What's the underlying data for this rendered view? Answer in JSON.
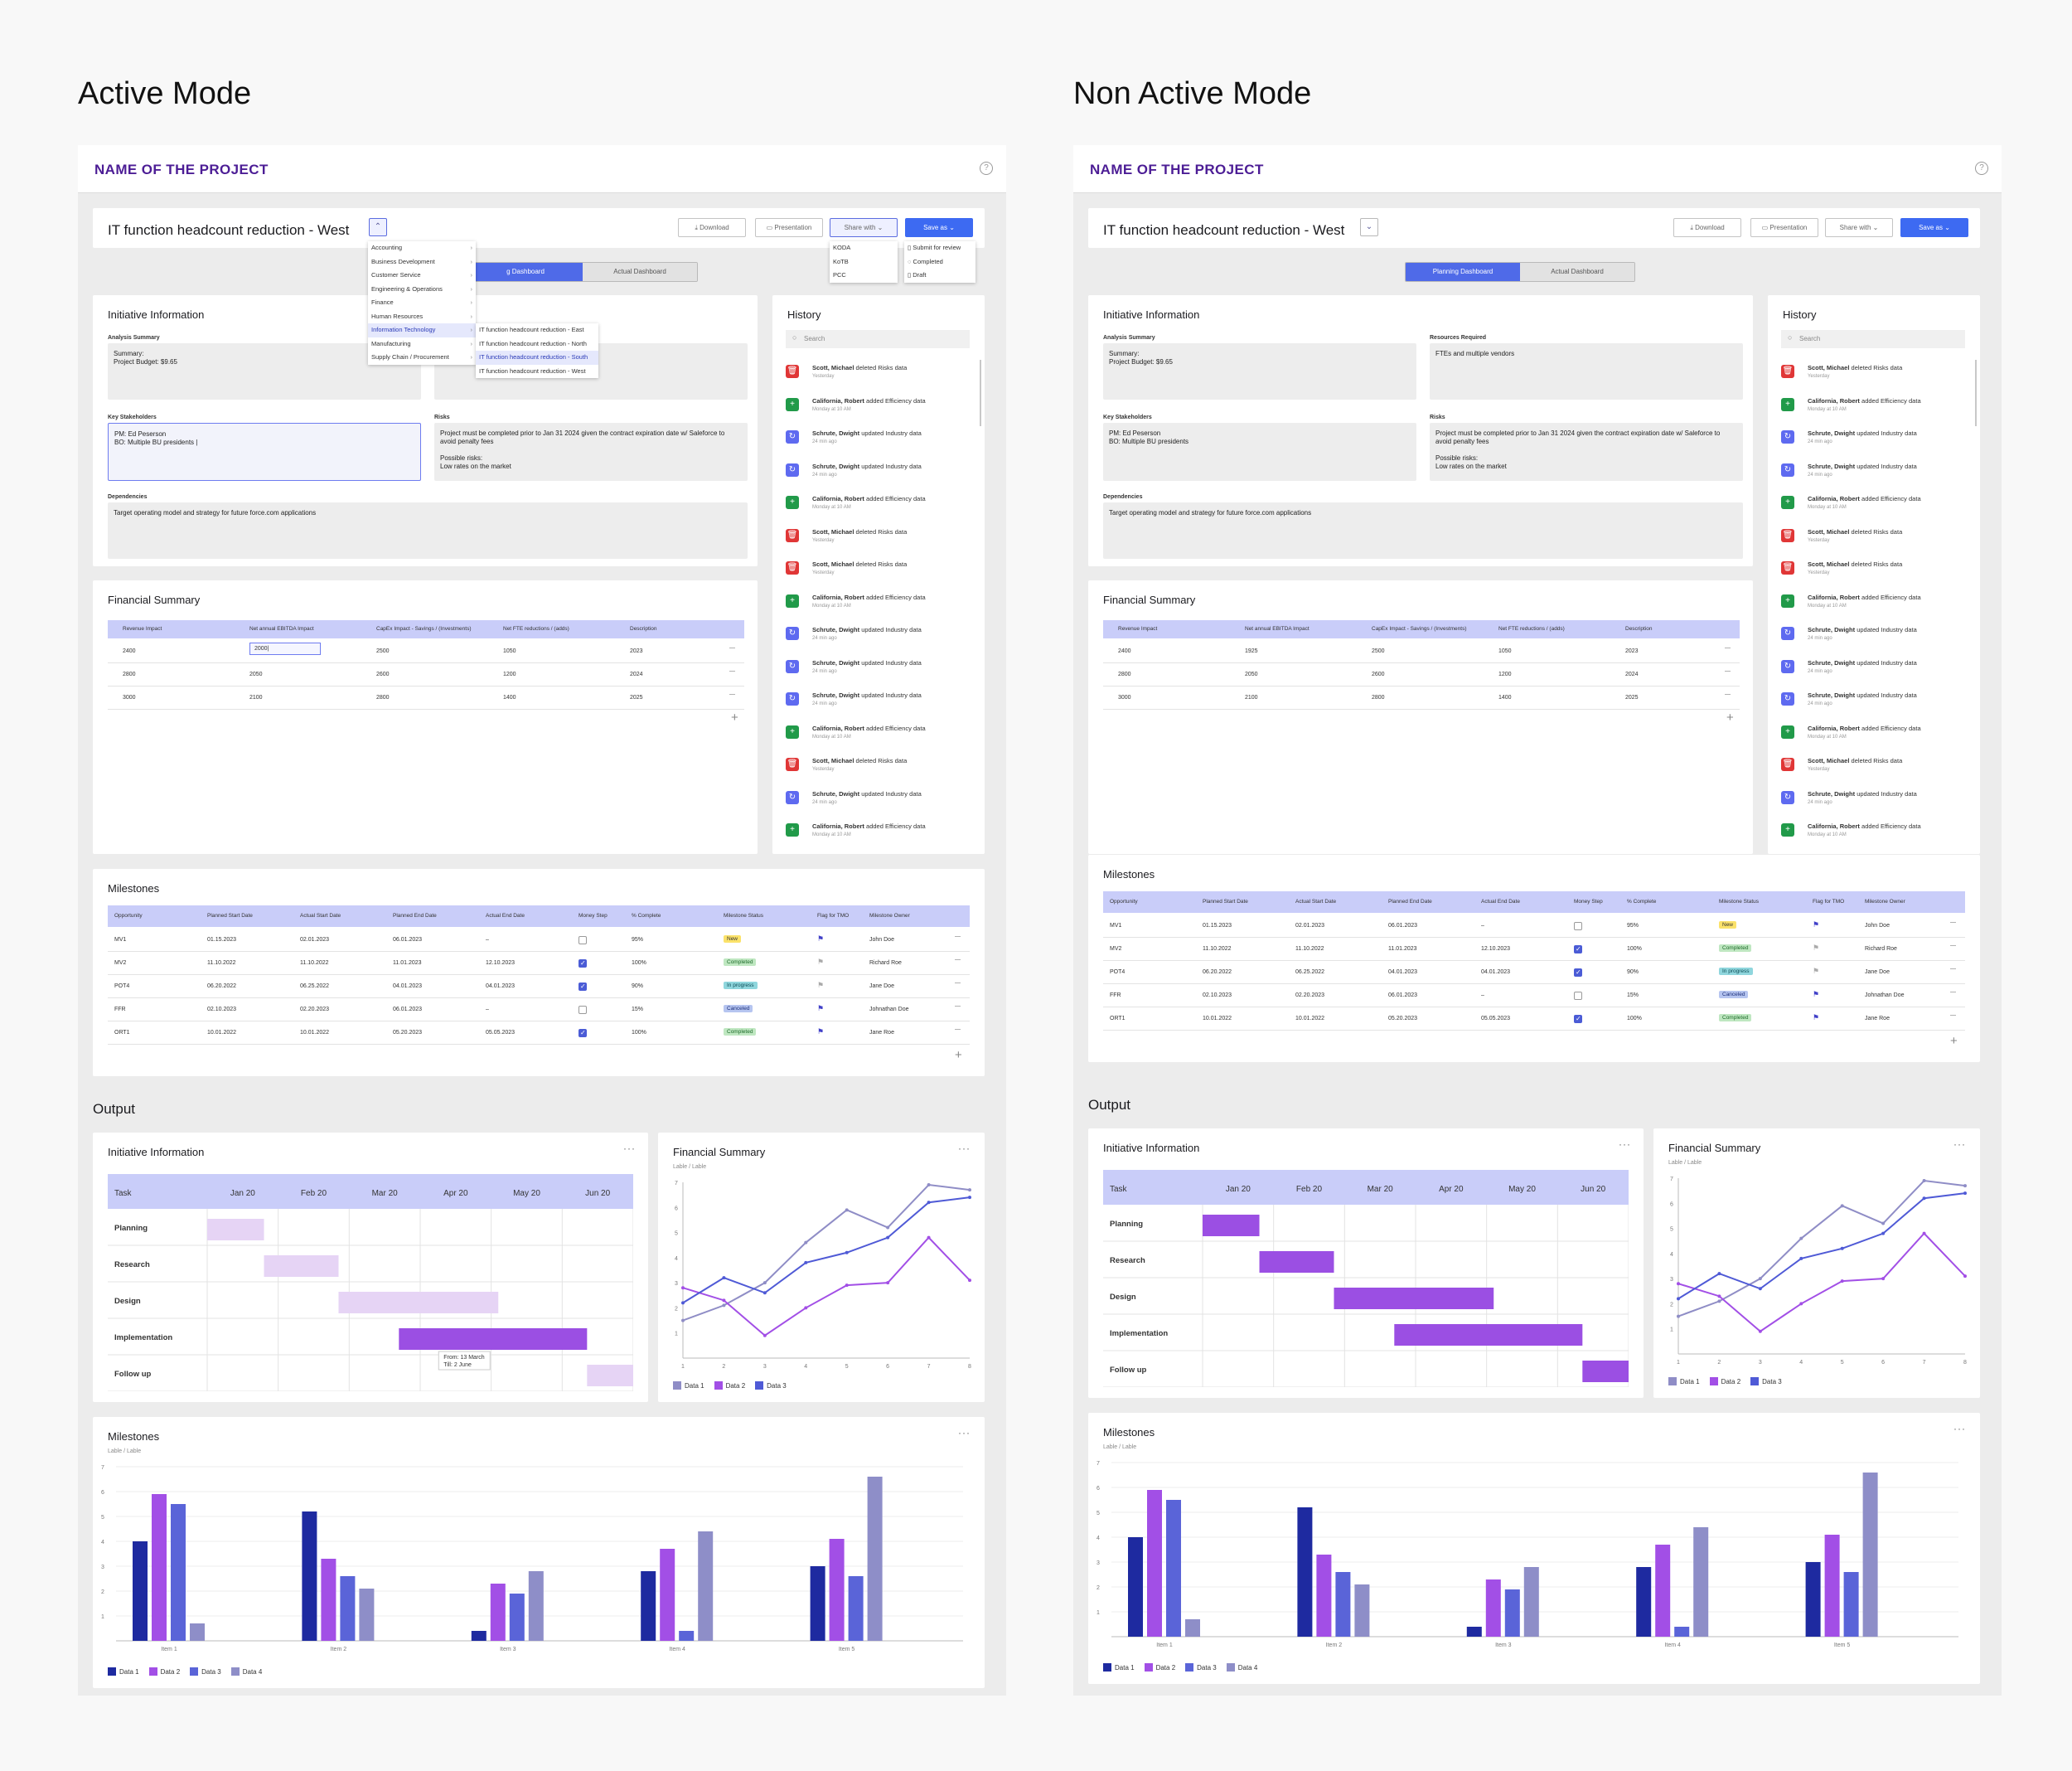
{
  "modes": {
    "active": "Active Mode",
    "non_active": "Non Active Mode"
  },
  "project_title": "NAME OF THE PROJECT",
  "initiative_title": "IT function headcount reduction - West",
  "toolbar": {
    "download": "Download",
    "presentation": "Presentation",
    "share": "Share with",
    "save": "Save as"
  },
  "tabs": {
    "planning": "Planning Dashboard",
    "actual": "Actual Dashboard",
    "planning_cut": "g Dashboard"
  },
  "category_menu": [
    "Accounting",
    "Business Development",
    "Customer Service",
    "Engineering & Operations",
    "Finance",
    "Human Resources",
    "Information Technology",
    "Manufacturing",
    "Supply Chain / Procurement"
  ],
  "sub_menu": [
    "IT function headcount reduction - East",
    "IT function headcount reduction - North",
    "IT function headcount reduction - South",
    "IT function headcount reduction - West"
  ],
  "share_menu": [
    "KODA",
    "KoTB",
    "PCC"
  ],
  "save_menu": [
    "Submit for review",
    "Completed",
    "Draft"
  ],
  "initiative": {
    "title": "Initiative Information",
    "analysis_label": "Analysis Summary",
    "analysis_value": "Summary:\nProject Budget: $9.65",
    "resources_label": "Resources Required",
    "resources_value": "FTEs and multiple vendors",
    "stakeholders_label": "Key Stakeholders",
    "stakeholders_value": "PM: Ed Peserson\nBO: Multiple BU presidents",
    "stakeholders_value_active": "PM: Ed Peserson\nBO: Multiple BU presidents |",
    "risks_label": "Risks",
    "risks_value": "Project must be completed prior to Jan 31 2024 given the contract expiration date w/ Saleforce to avoid penalty fees\n\nPossible risks:\nLow rates on the market",
    "deps_label": "Dependencies",
    "deps_value": "Target operating model and strategy for future force.com applications"
  },
  "history": {
    "title": "History",
    "search": "Search",
    "items": [
      {
        "t": "del",
        "name": "Scott, Michael",
        "action": "deleted Risks data",
        "time": "Yesterday"
      },
      {
        "t": "add",
        "name": "California, Robert",
        "action": "added Efficiency data",
        "time": "Monday at 10 AM"
      },
      {
        "t": "upd",
        "name": "Schrute, Dwight",
        "action": "updated Industry data",
        "time": "24 min ago"
      },
      {
        "t": "upd",
        "name": "Schrute, Dwight",
        "action": "updated Industry data",
        "time": "24 min ago"
      },
      {
        "t": "add",
        "name": "California, Robert",
        "action": "added Efficiency data",
        "time": "Monday at 10 AM"
      },
      {
        "t": "del",
        "name": "Scott, Michael",
        "action": "deleted Risks data",
        "time": "Yesterday"
      },
      {
        "t": "del",
        "name": "Scott, Michael",
        "action": "deleted Risks data",
        "time": "Yesterday"
      },
      {
        "t": "add",
        "name": "California, Robert",
        "action": "added Efficiency data",
        "time": "Monday at 10 AM"
      },
      {
        "t": "upd",
        "name": "Schrute, Dwight",
        "action": "updated Industry data",
        "time": "24 min ago"
      },
      {
        "t": "upd",
        "name": "Schrute, Dwight",
        "action": "updated Industry data",
        "time": "24 min ago"
      },
      {
        "t": "upd",
        "name": "Schrute, Dwight",
        "action": "updated Industry data",
        "time": "24 min ago"
      },
      {
        "t": "add",
        "name": "California, Robert",
        "action": "added Efficiency data",
        "time": "Monday at 10 AM"
      },
      {
        "t": "del",
        "name": "Scott, Michael",
        "action": "deleted Risks data",
        "time": "Yesterday"
      },
      {
        "t": "upd",
        "name": "Schrute, Dwight",
        "action": "updated Industry data",
        "time": "24 min ago"
      },
      {
        "t": "add",
        "name": "California, Robert",
        "action": "added Efficiency data",
        "time": "Monday at 10 AM"
      }
    ]
  },
  "financial": {
    "title": "Financial Summary",
    "headers": [
      "Revenue Impact",
      "Net annual EBITDA Impact",
      "CapEx Impact - Savings / (Investments)",
      "Net FTE reductions / (adds)",
      "Description"
    ],
    "rows_active": [
      [
        "2400",
        "2000|",
        "2500",
        "1050",
        "2023"
      ],
      [
        "2800",
        "2050",
        "2600",
        "1200",
        "2024"
      ],
      [
        "3000",
        "2100",
        "2800",
        "1400",
        "2025"
      ]
    ],
    "rows": [
      [
        "2400",
        "1925",
        "2500",
        "1050",
        "2023"
      ],
      [
        "2800",
        "2050",
        "2600",
        "1200",
        "2024"
      ],
      [
        "3000",
        "2100",
        "2800",
        "1400",
        "2025"
      ]
    ]
  },
  "milestones": {
    "title": "Milestones",
    "headers": [
      "Opportunity",
      "Planned Start Date",
      "Actual Start Date",
      "Planned End Date",
      "Actual End Date",
      "Money Step",
      "% Complete",
      "Milestone Status",
      "Flag for TMO",
      "Milestone Owner"
    ],
    "rows": [
      {
        "c": [
          "MV1",
          "01.15.2023",
          "02.01.2023",
          "06.01.2023",
          "–"
        ],
        "chk": false,
        "pct": "95%",
        "status": "New",
        "cls": "b-new",
        "flag": true,
        "owner": "John Doe"
      },
      {
        "c": [
          "MV2",
          "11.10.2022",
          "11.10.2022",
          "11.01.2023",
          "12.10.2023"
        ],
        "chk": true,
        "pct": "100%",
        "status": "Completed",
        "cls": "b-comp",
        "flag": false,
        "owner": "Richard Roe"
      },
      {
        "c": [
          "POT4",
          "06.20.2022",
          "06.25.2022",
          "04.01.2023",
          "04.01.2023"
        ],
        "chk": true,
        "pct": "90%",
        "status": "In progress",
        "cls": "b-prog",
        "flag": false,
        "owner": "Jane Doe"
      },
      {
        "c": [
          "FFR",
          "02.10.2023",
          "02.20.2023",
          "06.01.2023",
          "–"
        ],
        "chk": false,
        "pct": "15%",
        "status": "Canceled",
        "cls": "b-can",
        "flag": true,
        "owner": "Johnathan Doe"
      },
      {
        "c": [
          "ORT1",
          "10.01.2022",
          "10.01.2022",
          "05.20.2023",
          "05.05.2023"
        ],
        "chk": true,
        "pct": "100%",
        "status": "Completed",
        "cls": "b-comp",
        "flag": true,
        "owner": "Jane Roe"
      }
    ]
  },
  "output": {
    "title": "Output",
    "gantt_title": "Initiative Information",
    "fin_title": "Financial Summary",
    "ms_title": "Milestones",
    "sub": "Lable / Lable",
    "tooltip": [
      "From: 13 March",
      "Till: 2 June"
    ]
  },
  "colors": {
    "d1": "#8f8dc6",
    "d2": "#a24fe6",
    "d3": "#4f5ad6",
    "b1": "#1e2aa0",
    "b2": "#a24fe6",
    "b3": "#5a64d8",
    "b4": "#8e8ec8",
    "gantt_on": "#9b4fe3",
    "gantt_off": "#e6d4f5"
  },
  "chart_data": [
    {
      "type": "table",
      "title": "Initiative Information",
      "columns": [
        "Task",
        "Jan 20",
        "Feb 20",
        "Mar 20",
        "Apr 20",
        "May 20",
        "Jun 20"
      ],
      "tasks": [
        {
          "task": "Planning",
          "start": 0.0,
          "end": 0.8
        },
        {
          "task": "Research",
          "start": 0.8,
          "end": 1.85
        },
        {
          "task": "Design",
          "start": 1.85,
          "end": 4.1
        },
        {
          "task": "Implementation",
          "start": 2.7,
          "end": 5.35
        },
        {
          "task": "Follow up",
          "start": 5.35,
          "end": 6.3
        }
      ]
    },
    {
      "type": "line",
      "title": "Financial Summary",
      "subtitle": "Lable / Lable",
      "x": [
        1,
        2,
        3,
        4,
        5,
        6,
        7,
        8
      ],
      "ylim": [
        0,
        7
      ],
      "series": [
        {
          "name": "Data 1",
          "values": [
            1.5,
            2.1,
            3.0,
            4.6,
            5.9,
            5.2,
            6.9,
            6.7
          ]
        },
        {
          "name": "Data 2",
          "values": [
            2.8,
            2.3,
            0.9,
            2.0,
            2.9,
            3.0,
            4.8,
            3.1
          ]
        },
        {
          "name": "Data 3",
          "values": [
            2.2,
            3.2,
            2.6,
            3.8,
            4.2,
            4.8,
            6.2,
            6.4
          ]
        }
      ]
    },
    {
      "type": "bar",
      "title": "Milestones",
      "subtitle": "Lable / Lable",
      "categories": [
        "Item 1",
        "Item 2",
        "Item 3",
        "Item 4",
        "Item 5"
      ],
      "ylim": [
        0,
        7
      ],
      "series": [
        {
          "name": "Data 1",
          "values": [
            4.0,
            5.2,
            0.4,
            2.8,
            3.0
          ]
        },
        {
          "name": "Data 2",
          "values": [
            5.9,
            3.3,
            2.3,
            3.7,
            4.1
          ]
        },
        {
          "name": "Data 3",
          "values": [
            5.5,
            2.6,
            1.9,
            0.4,
            2.6
          ]
        },
        {
          "name": "Data 4",
          "values": [
            0.7,
            2.1,
            2.8,
            4.4,
            6.6
          ]
        }
      ]
    }
  ]
}
